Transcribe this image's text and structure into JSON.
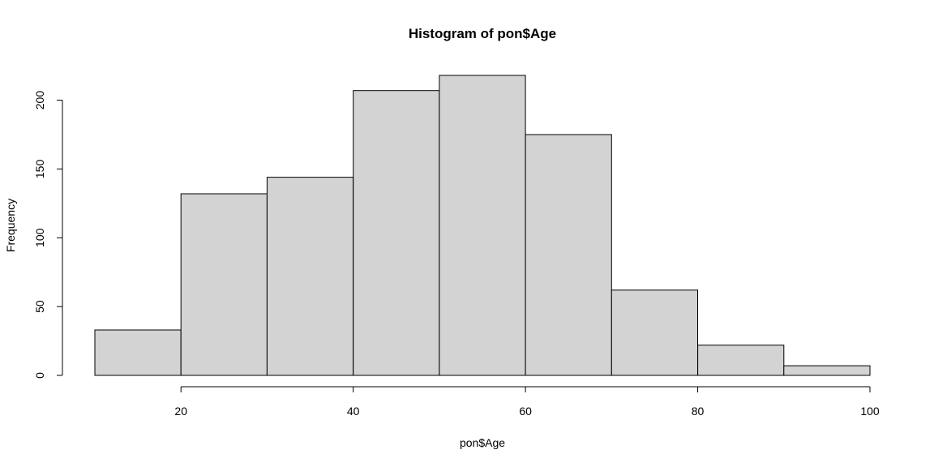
{
  "chart_data": {
    "type": "bar",
    "title": "Histogram of pon$Age",
    "xlabel": "pon$Age",
    "ylabel": "Frequency",
    "bins": [
      {
        "start": 10,
        "end": 20,
        "count": 33
      },
      {
        "start": 20,
        "end": 30,
        "count": 132
      },
      {
        "start": 30,
        "end": 40,
        "count": 144
      },
      {
        "start": 40,
        "end": 50,
        "count": 207
      },
      {
        "start": 50,
        "end": 60,
        "count": 218
      },
      {
        "start": 60,
        "end": 70,
        "count": 175
      },
      {
        "start": 70,
        "end": 80,
        "count": 62
      },
      {
        "start": 80,
        "end": 90,
        "count": 22
      },
      {
        "start": 90,
        "end": 100,
        "count": 7
      }
    ],
    "xlim": [
      10,
      100
    ],
    "ylim": [
      0,
      218
    ],
    "x_ticks": [
      20,
      40,
      60,
      80,
      100
    ],
    "y_ticks": [
      0,
      50,
      100,
      150,
      200
    ],
    "grid": false,
    "colors": {
      "bar_fill": "#d3d3d3",
      "bar_stroke": "#000000"
    }
  }
}
